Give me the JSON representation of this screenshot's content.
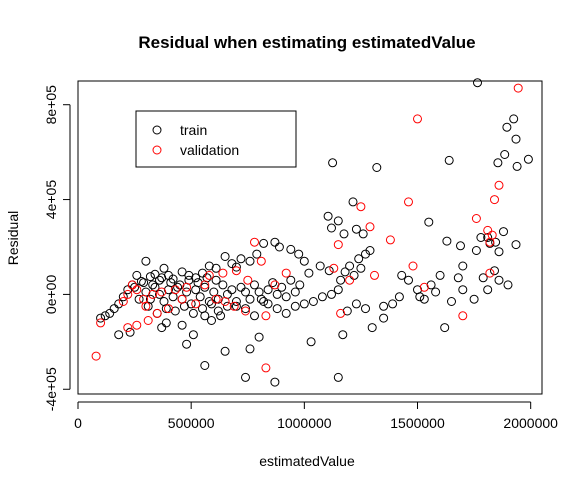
{
  "chart_data": {
    "type": "scatter",
    "title": "Residual when estimating estimatedValue",
    "xlabel": "estimatedValue",
    "ylabel": "Residual",
    "xlim": [
      0,
      2050000
    ],
    "ylim": [
      -420000,
      900000
    ],
    "x_ticks": [
      0,
      500000,
      1000000,
      1500000,
      2000000
    ],
    "x_tick_labels": [
      "0",
      "500000",
      "1000000",
      "1500000",
      "2000000"
    ],
    "y_ticks": [
      -400000,
      0,
      400000,
      800000
    ],
    "y_tick_labels": [
      "-4e+05",
      "0e+00",
      "4e+05",
      "8e+05"
    ],
    "grid": false,
    "legend_position": "top-left",
    "series": [
      {
        "name": "train",
        "color": "#000000",
        "points": [
          [
            1765000,
            893000
          ],
          [
            1925000,
            740000
          ],
          [
            1895000,
            705000
          ],
          [
            1935000,
            655000
          ],
          [
            1640000,
            565000
          ],
          [
            1885000,
            590000
          ],
          [
            1990000,
            570000
          ],
          [
            1855000,
            555000
          ],
          [
            1940000,
            540000
          ],
          [
            1320000,
            535000
          ],
          [
            1125000,
            555000
          ],
          [
            1105000,
            330000
          ],
          [
            1150000,
            310000
          ],
          [
            1215000,
            390000
          ],
          [
            1230000,
            275000
          ],
          [
            1175000,
            255000
          ],
          [
            1260000,
            255000
          ],
          [
            1120000,
            280000
          ],
          [
            1550000,
            305000
          ],
          [
            1630000,
            225000
          ],
          [
            1780000,
            240000
          ],
          [
            1810000,
            240000
          ],
          [
            1880000,
            265000
          ],
          [
            1845000,
            220000
          ],
          [
            1935000,
            210000
          ],
          [
            1690000,
            205000
          ],
          [
            1820000,
            215000
          ],
          [
            1860000,
            180000
          ],
          [
            1760000,
            185000
          ],
          [
            1700000,
            120000
          ],
          [
            1290000,
            185000
          ],
          [
            1270000,
            170000
          ],
          [
            1240000,
            150000
          ],
          [
            1200000,
            120000
          ],
          [
            1180000,
            95000
          ],
          [
            1220000,
            80000
          ],
          [
            1250000,
            110000
          ],
          [
            1160000,
            60000
          ],
          [
            1110000,
            100000
          ],
          [
            1070000,
            120000
          ],
          [
            1020000,
            90000
          ],
          [
            1000000,
            140000
          ],
          [
            975000,
            170000
          ],
          [
            940000,
            190000
          ],
          [
            890000,
            200000
          ],
          [
            870000,
            220000
          ],
          [
            820000,
            215000
          ],
          [
            790000,
            170000
          ],
          [
            760000,
            140000
          ],
          [
            720000,
            150000
          ],
          [
            700000,
            115000
          ],
          [
            680000,
            130000
          ],
          [
            650000,
            160000
          ],
          [
            610000,
            110000
          ],
          [
            580000,
            120000
          ],
          [
            550000,
            90000
          ],
          [
            520000,
            70000
          ],
          [
            490000,
            80000
          ],
          [
            460000,
            95000
          ],
          [
            420000,
            65000
          ],
          [
            400000,
            80000
          ],
          [
            380000,
            110000
          ],
          [
            360000,
            60000
          ],
          [
            340000,
            85000
          ],
          [
            320000,
            75000
          ],
          [
            300000,
            140000
          ],
          [
            280000,
            55000
          ],
          [
            260000,
            80000
          ],
          [
            240000,
            40000
          ],
          [
            220000,
            20000
          ],
          [
            200000,
            -10000
          ],
          [
            180000,
            -40000
          ],
          [
            160000,
            -60000
          ],
          [
            140000,
            -80000
          ],
          [
            120000,
            -90000
          ],
          [
            100000,
            -100000
          ],
          [
            180000,
            -170000
          ],
          [
            230000,
            -160000
          ],
          [
            370000,
            -140000
          ],
          [
            390000,
            -120000
          ],
          [
            460000,
            -130000
          ],
          [
            510000,
            -170000
          ],
          [
            560000,
            -90000
          ],
          [
            590000,
            -110000
          ],
          [
            620000,
            -70000
          ],
          [
            660000,
            -50000
          ],
          [
            700000,
            -30000
          ],
          [
            740000,
            -60000
          ],
          [
            780000,
            -90000
          ],
          [
            810000,
            -20000
          ],
          [
            840000,
            -40000
          ],
          [
            880000,
            -60000
          ],
          [
            920000,
            -80000
          ],
          [
            960000,
            -50000
          ],
          [
            1000000,
            -40000
          ],
          [
            1040000,
            -30000
          ],
          [
            1080000,
            -10000
          ],
          [
            1120000,
            0
          ],
          [
            1150000,
            20000
          ],
          [
            1190000,
            -70000
          ],
          [
            1230000,
            -40000
          ],
          [
            1270000,
            -60000
          ],
          [
            1300000,
            -140000
          ],
          [
            1350000,
            -100000
          ],
          [
            1390000,
            -40000
          ],
          [
            1420000,
            -10000
          ],
          [
            1460000,
            60000
          ],
          [
            1500000,
            20000
          ],
          [
            1530000,
            -20000
          ],
          [
            1560000,
            40000
          ],
          [
            1600000,
            80000
          ],
          [
            1620000,
            -140000
          ],
          [
            1650000,
            -30000
          ],
          [
            1700000,
            20000
          ],
          [
            1750000,
            -20000
          ],
          [
            1790000,
            70000
          ],
          [
            1840000,
            100000
          ],
          [
            1860000,
            60000
          ],
          [
            1900000,
            40000
          ],
          [
            1150000,
            -350000
          ],
          [
            870000,
            -370000
          ],
          [
            800000,
            -180000
          ],
          [
            740000,
            -350000
          ],
          [
            650000,
            -240000
          ],
          [
            560000,
            -300000
          ],
          [
            480000,
            -210000
          ],
          [
            760000,
            -230000
          ],
          [
            1030000,
            -200000
          ],
          [
            1170000,
            -170000
          ],
          [
            1350000,
            -50000
          ],
          [
            1430000,
            80000
          ],
          [
            1510000,
            -10000
          ],
          [
            1580000,
            10000
          ],
          [
            1680000,
            70000
          ],
          [
            1810000,
            20000
          ],
          [
            300000,
            10000
          ],
          [
            320000,
            -20000
          ],
          [
            340000,
            30000
          ],
          [
            360000,
            0
          ],
          [
            380000,
            -30000
          ],
          [
            400000,
            20000
          ],
          [
            420000,
            -10000
          ],
          [
            440000,
            30000
          ],
          [
            460000,
            -20000
          ],
          [
            480000,
            10000
          ],
          [
            500000,
            -40000
          ],
          [
            520000,
            20000
          ],
          [
            540000,
            -10000
          ],
          [
            560000,
            30000
          ],
          [
            580000,
            -30000
          ],
          [
            600000,
            10000
          ],
          [
            620000,
            -20000
          ],
          [
            640000,
            40000
          ],
          [
            660000,
            0
          ],
          [
            680000,
            20000
          ],
          [
            700000,
            -50000
          ],
          [
            720000,
            30000
          ],
          [
            740000,
            10000
          ],
          [
            760000,
            -20000
          ],
          [
            780000,
            40000
          ],
          [
            800000,
            10000
          ],
          [
            820000,
            -30000
          ],
          [
            840000,
            20000
          ],
          [
            860000,
            50000
          ],
          [
            880000,
            0
          ],
          [
            900000,
            30000
          ],
          [
            920000,
            -10000
          ],
          [
            940000,
            60000
          ],
          [
            960000,
            10000
          ],
          [
            980000,
            40000
          ],
          [
            250000,
            30000
          ],
          [
            270000,
            -20000
          ],
          [
            290000,
            50000
          ],
          [
            310000,
            -50000
          ],
          [
            330000,
            40000
          ],
          [
            350000,
            -80000
          ],
          [
            370000,
            70000
          ],
          [
            390000,
            -60000
          ],
          [
            410000,
            50000
          ],
          [
            430000,
            -70000
          ],
          [
            450000,
            40000
          ],
          [
            470000,
            -50000
          ],
          [
            490000,
            60000
          ],
          [
            510000,
            -80000
          ],
          [
            530000,
            50000
          ],
          [
            550000,
            -60000
          ],
          [
            570000,
            70000
          ],
          [
            590000,
            -40000
          ],
          [
            610000,
            60000
          ],
          [
            630000,
            -90000
          ]
        ]
      },
      {
        "name": "validation",
        "color": "#ff0000",
        "points": [
          [
            1945000,
            870000
          ],
          [
            1500000,
            740000
          ],
          [
            1860000,
            460000
          ],
          [
            1460000,
            390000
          ],
          [
            1840000,
            400000
          ],
          [
            1250000,
            370000
          ],
          [
            1760000,
            320000
          ],
          [
            1810000,
            270000
          ],
          [
            1830000,
            250000
          ],
          [
            1290000,
            285000
          ],
          [
            1380000,
            230000
          ],
          [
            1820000,
            220000
          ],
          [
            1150000,
            210000
          ],
          [
            780000,
            220000
          ],
          [
            810000,
            140000
          ],
          [
            1480000,
            120000
          ],
          [
            1130000,
            110000
          ],
          [
            1820000,
            90000
          ],
          [
            1310000,
            80000
          ],
          [
            1200000,
            60000
          ],
          [
            870000,
            40000
          ],
          [
            1530000,
            30000
          ],
          [
            700000,
            100000
          ],
          [
            640000,
            90000
          ],
          [
            580000,
            80000
          ],
          [
            560000,
            40000
          ],
          [
            480000,
            30000
          ],
          [
            430000,
            20000
          ],
          [
            370000,
            10000
          ],
          [
            330000,
            0
          ],
          [
            290000,
            -20000
          ],
          [
            260000,
            20000
          ],
          [
            240000,
            40000
          ],
          [
            220000,
            0
          ],
          [
            200000,
            -30000
          ],
          [
            1700000,
            -90000
          ],
          [
            1160000,
            -80000
          ],
          [
            830000,
            -90000
          ],
          [
            740000,
            -70000
          ],
          [
            690000,
            -50000
          ],
          [
            650000,
            -30000
          ],
          [
            610000,
            -20000
          ],
          [
            520000,
            -40000
          ],
          [
            460000,
            -20000
          ],
          [
            400000,
            -60000
          ],
          [
            350000,
            -80000
          ],
          [
            310000,
            -110000
          ],
          [
            260000,
            -130000
          ],
          [
            220000,
            -140000
          ],
          [
            100000,
            -120000
          ],
          [
            80000,
            -260000
          ],
          [
            830000,
            -310000
          ],
          [
            300000,
            -50000
          ],
          [
            750000,
            60000
          ],
          [
            920000,
            90000
          ]
        ]
      }
    ]
  }
}
